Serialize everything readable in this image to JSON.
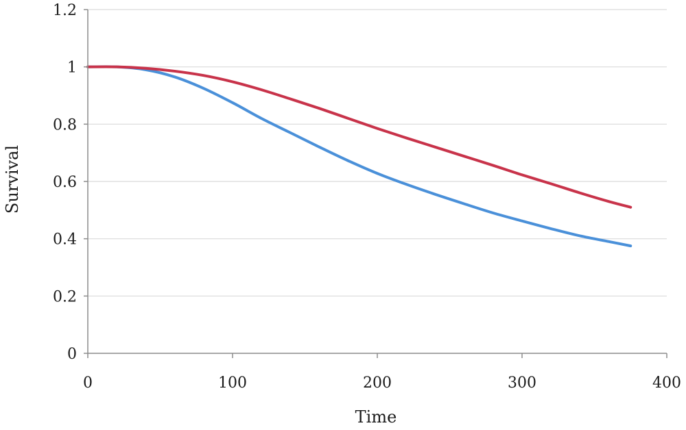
{
  "chart_data": {
    "type": "line",
    "xlabel": "Time",
    "ylabel": "Survival",
    "xlim": [
      0,
      400
    ],
    "ylim": [
      0,
      1.2
    ],
    "xticks": [
      0,
      100,
      200,
      300,
      400
    ],
    "xtick_labels": [
      "0",
      "100",
      "200",
      "300",
      "400"
    ],
    "yticks": [
      0,
      0.2,
      0.4,
      0.6,
      0.8,
      1,
      1.2
    ],
    "ytick_labels": [
      "0",
      "0.2",
      "0.4",
      "0.6",
      "0.8",
      "1",
      "1.2"
    ],
    "grid": true,
    "legend": "none",
    "series": [
      {
        "color": "#c8334a",
        "x": [
          0,
          20,
          40,
          60,
          80,
          100,
          120,
          140,
          160,
          180,
          200,
          220,
          240,
          260,
          280,
          300,
          320,
          340,
          360,
          375
        ],
        "y": [
          1.0,
          1.0,
          0.995,
          0.985,
          0.97,
          0.948,
          0.92,
          0.888,
          0.855,
          0.82,
          0.785,
          0.752,
          0.72,
          0.688,
          0.656,
          0.623,
          0.592,
          0.56,
          0.53,
          0.51
        ]
      },
      {
        "color": "#4a90d9",
        "x": [
          0,
          20,
          40,
          60,
          80,
          100,
          120,
          140,
          160,
          180,
          200,
          220,
          240,
          260,
          280,
          300,
          320,
          340,
          360,
          375
        ],
        "y": [
          1.0,
          1.0,
          0.99,
          0.965,
          0.925,
          0.875,
          0.82,
          0.77,
          0.72,
          0.672,
          0.628,
          0.59,
          0.555,
          0.522,
          0.49,
          0.462,
          0.435,
          0.41,
          0.39,
          0.375
        ]
      }
    ]
  }
}
